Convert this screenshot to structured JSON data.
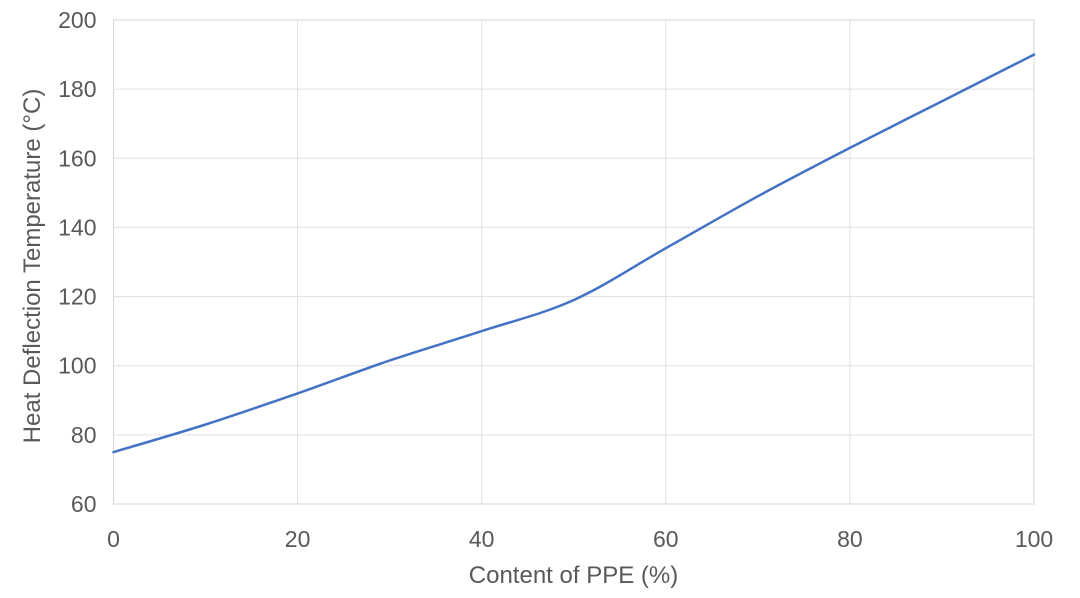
{
  "chart_data": {
    "type": "line",
    "title": "",
    "xlabel": "Content of PPE (%)",
    "ylabel": "Heat Deflection Temperature (°C)",
    "x": [
      0,
      10,
      20,
      30,
      40,
      50,
      60,
      70,
      80,
      90,
      100
    ],
    "values": [
      75,
      83,
      92,
      101.5,
      110,
      119,
      134,
      149,
      163,
      176.5,
      190
    ],
    "xlim": [
      0,
      100
    ],
    "ylim": [
      60,
      200
    ],
    "xticks": [
      0,
      20,
      40,
      60,
      80,
      100
    ],
    "yticks": [
      60,
      80,
      100,
      120,
      140,
      160,
      180,
      200
    ],
    "grid": true,
    "legend": false,
    "colors": {
      "line": "#4472C4",
      "grid": "#E0E0E0",
      "border": "#D6D6D6",
      "text": "#595959"
    }
  }
}
